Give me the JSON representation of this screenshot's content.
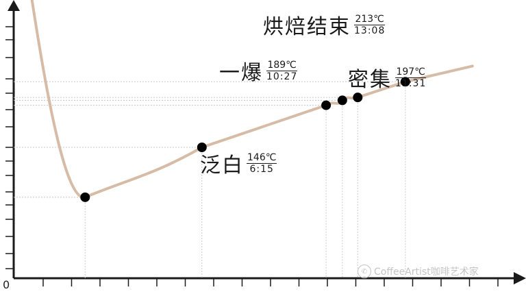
{
  "chart_data": {
    "type": "line",
    "title": "",
    "xlabel": "",
    "ylabel": "",
    "origin_label": "0",
    "grid": false,
    "points": [
      {
        "t": 0.0,
        "y": 395
      },
      {
        "t": 2.3,
        "y": 95
      },
      {
        "t": 6.25,
        "y": 146
      },
      {
        "t": 10.45,
        "y": 189
      },
      {
        "t": 11.0,
        "y": 194
      },
      {
        "t": 11.52,
        "y": 197
      },
      {
        "t": 13.13,
        "y": 213
      }
    ],
    "curve_end": {
      "t": 15.4,
      "y": 229
    },
    "annotations": [
      {
        "id": "yellowing",
        "name": "泛白",
        "temp": "146℃",
        "time": "6:15"
      },
      {
        "id": "first-crack",
        "name": "一爆",
        "temp": "189℃",
        "time": "10:27"
      },
      {
        "id": "dense",
        "name": "密集",
        "temp": "197℃",
        "time": "11:31"
      },
      {
        "id": "end",
        "name": "烘焙结束",
        "temp": "213℃",
        "time": "13:08"
      }
    ],
    "colors": {
      "curve": "#d6bca6",
      "axis": "#1a1a1a",
      "marker": "#000000",
      "guide": "#c8c8c8"
    }
  },
  "watermark": {
    "icon": "wechat-icon",
    "text": "CoffeeArtist咖啡艺术家"
  }
}
